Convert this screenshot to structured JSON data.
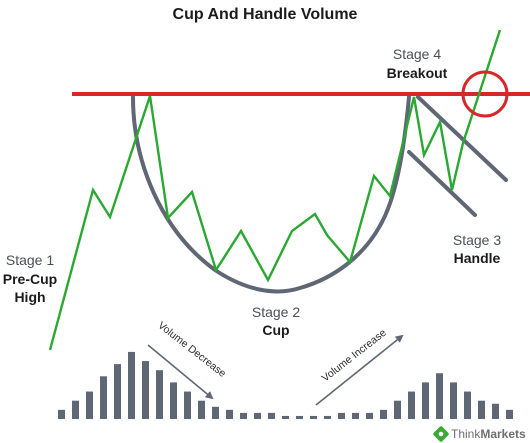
{
  "title": "Cup And Handle Volume",
  "stages": {
    "stage1": {
      "number": "Stage 1",
      "name_line1": "Pre-Cup",
      "name_line2": "High"
    },
    "stage2": {
      "number": "Stage 2",
      "name": "Cup"
    },
    "stage3": {
      "number": "Stage 3",
      "name": "Handle"
    },
    "stage4": {
      "number": "Stage 4",
      "name": "Breakout"
    }
  },
  "volume_labels": {
    "decrease": "Volume Decrease",
    "increase": "Volume Increase"
  },
  "volume_bars": [
    3,
    6,
    9,
    14,
    18,
    22,
    19,
    16,
    12,
    9,
    6,
    4,
    3,
    2,
    2,
    2,
    1,
    1,
    1,
    1,
    2,
    2,
    2,
    3,
    6,
    9,
    12,
    15,
    12,
    9,
    6,
    5,
    3
  ],
  "logo": {
    "name": "ThinkMarkets",
    "prefix": "Think",
    "suffix": "Markets"
  },
  "colors": {
    "resistance_line": "#d62828",
    "price_line": "#2aa832",
    "cup_curve": "#5f6775",
    "volume_bar": "#5f6775",
    "breakout_circle": "#d62828",
    "arrow": "#5f6775",
    "logo_green": "#3aa935"
  }
}
